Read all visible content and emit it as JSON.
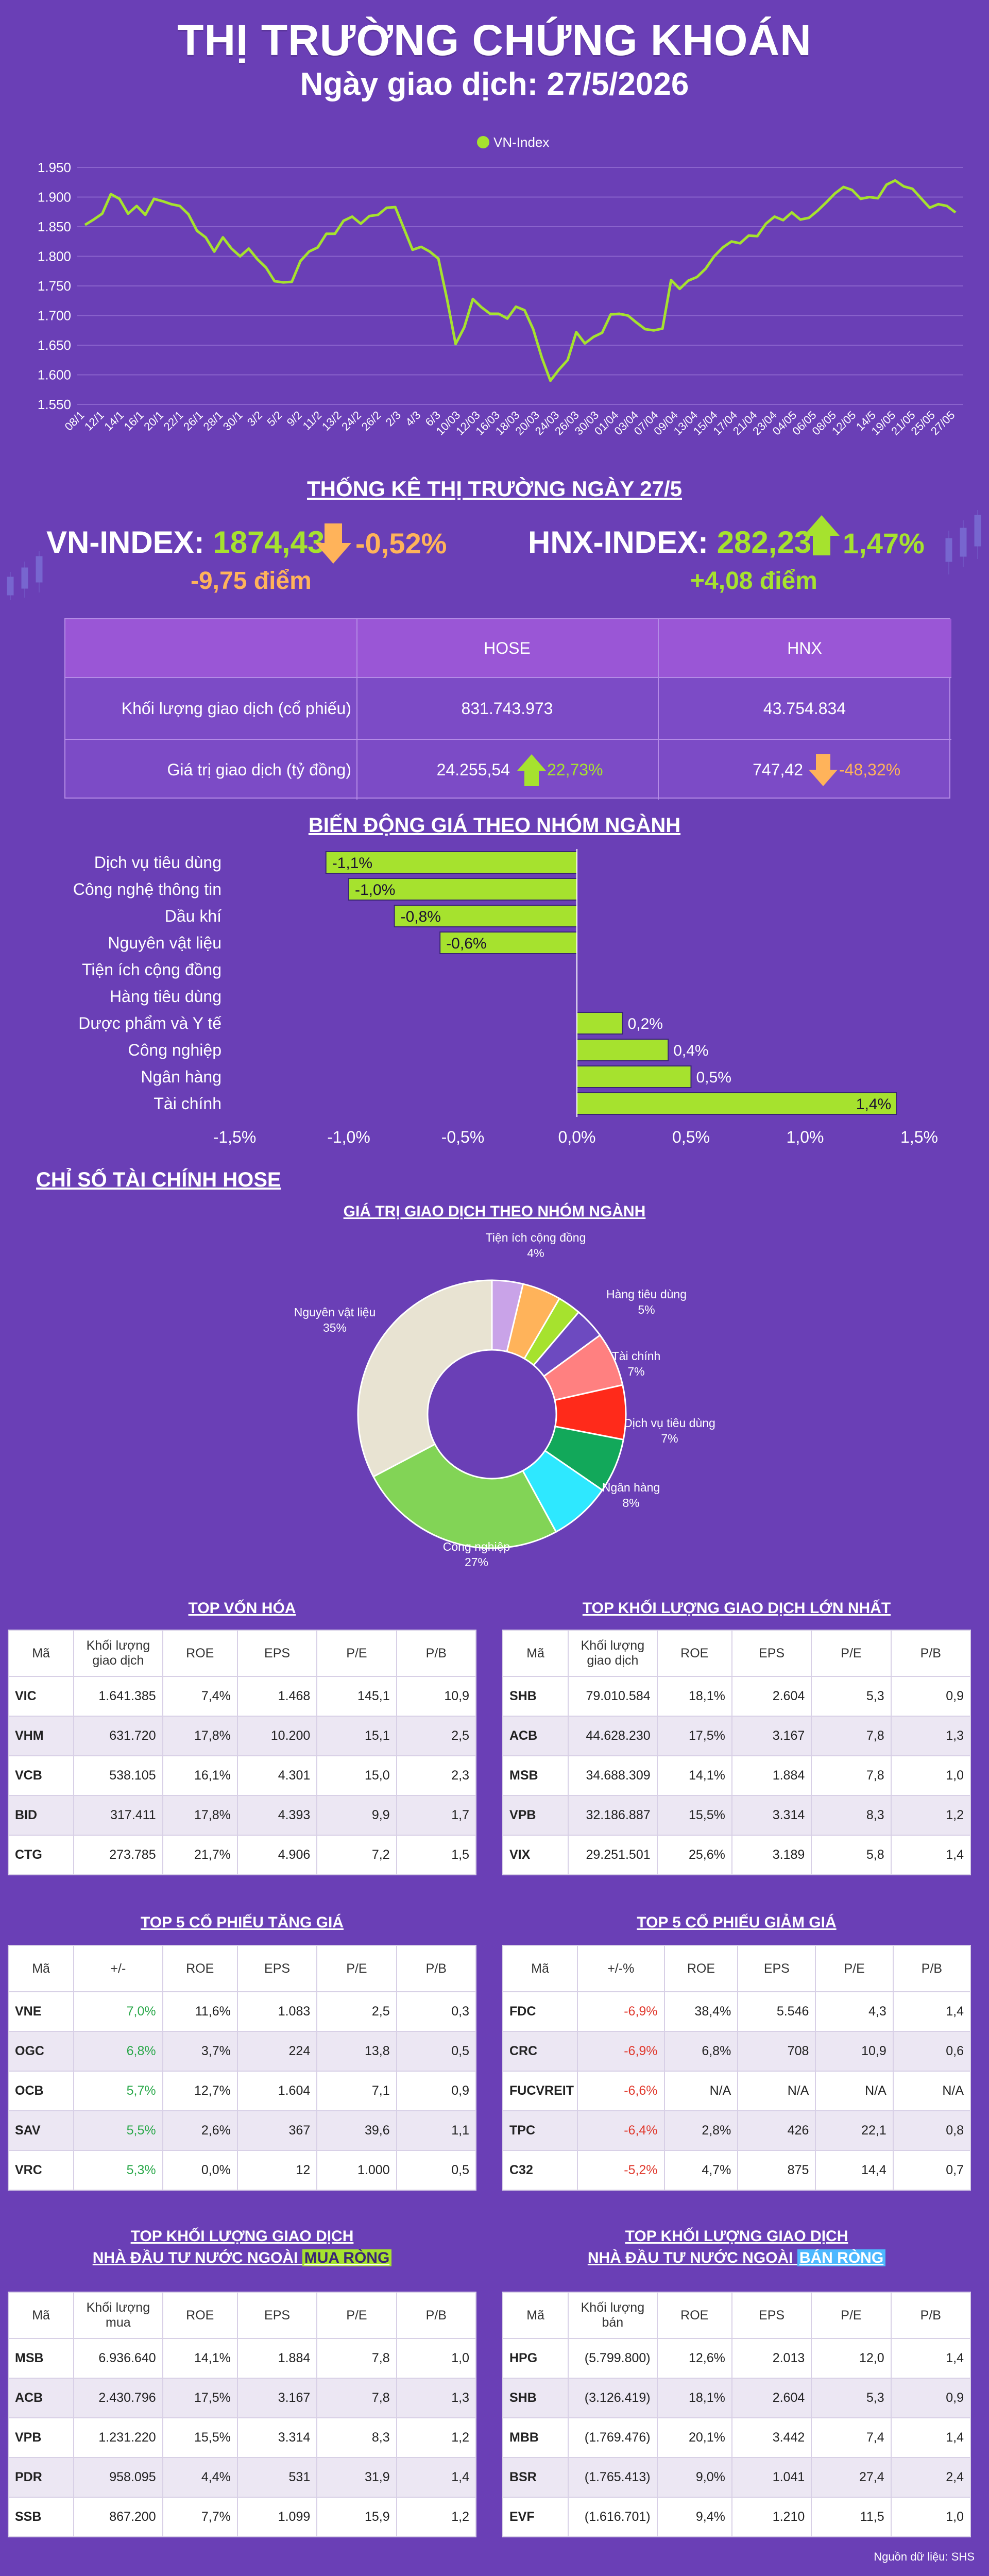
{
  "header": {
    "title": "THỊ TRƯỜNG CHỨNG KHOÁN",
    "subtitle": "Ngày giao dịch: 27/5/2026"
  },
  "colors": {
    "background": "#6a3fb6",
    "accent_green": "#a6e22e",
    "accent_orange": "#ffb35a",
    "table_header": "#9a56d6",
    "table_body": "#7c4bc6"
  },
  "chart_data": [
    {
      "type": "line",
      "legend": "VN-Index",
      "legend_position": "top",
      "ylim": [
        1550,
        1950
      ],
      "yticks": [
        "1.950",
        "1.900",
        "1.850",
        "1.800",
        "1.750",
        "1.700",
        "1.650",
        "1.600",
        "1.550"
      ],
      "ytick_values": [
        1950,
        1900,
        1850,
        1800,
        1750,
        1700,
        1650,
        1600,
        1550
      ],
      "xticks": [
        "08/1",
        "12/1",
        "14/1",
        "16/1",
        "20/1",
        "22/1",
        "26/1",
        "28/1",
        "30/1",
        "3/2",
        "5/2",
        "9/2",
        "11/2",
        "13/2",
        "24/2",
        "26/2",
        "2/3",
        "4/3",
        "6/3",
        "10/03",
        "12/03",
        "16/03",
        "18/03",
        "20/03",
        "24/03",
        "26/03",
        "30/03",
        "01/04",
        "03/04",
        "07/04",
        "09/04",
        "13/04",
        "15/04",
        "17/04",
        "21/04",
        "23/04",
        "04/05",
        "06/05",
        "08/05",
        "12/05",
        "14/5",
        "19/05",
        "21/05",
        "25/05",
        "27/05"
      ],
      "values": [
        1853,
        1862,
        1872,
        1905,
        1897,
        1872,
        1885,
        1870,
        1897,
        1893,
        1888,
        1885,
        1871,
        1843,
        1832,
        1808,
        1832,
        1813,
        1800,
        1813,
        1795,
        1781,
        1758,
        1756,
        1757,
        1792,
        1808,
        1815,
        1838,
        1838,
        1860,
        1867,
        1855,
        1868,
        1870,
        1882,
        1883,
        1847,
        1811,
        1816,
        1808,
        1796,
        1728,
        1652,
        1680,
        1728,
        1714,
        1703,
        1703,
        1695,
        1715,
        1709,
        1677,
        1629,
        1590,
        1609,
        1625,
        1672,
        1653,
        1664,
        1671,
        1702,
        1703,
        1700,
        1688,
        1677,
        1675,
        1678,
        1760,
        1745,
        1759,
        1765,
        1779,
        1800,
        1815,
        1825,
        1822,
        1835,
        1834,
        1855,
        1867,
        1861,
        1874,
        1862,
        1865,
        1877,
        1891,
        1906,
        1917,
        1912,
        1897,
        1900,
        1898,
        1921,
        1928,
        1918,
        1914,
        1898,
        1882,
        1888,
        1885,
        1874
      ]
    },
    {
      "type": "bar",
      "orientation": "horizontal",
      "categories": [
        "Dịch vụ tiêu dùng",
        "Công nghệ thông tin",
        "Dầu khí",
        "Nguyên vật liệu",
        "Tiện ích cộng đồng",
        "Hàng tiêu dùng",
        "Dược phẩm và Y tế",
        "Công nghiệp",
        "Ngân hàng",
        "Tài chính"
      ],
      "values": [
        -1.1,
        -1.0,
        -0.8,
        -0.6,
        0,
        0,
        0.2,
        0.4,
        0.5,
        1.4
      ],
      "labels": [
        "-1,1%",
        "-1,0%",
        "-0,8%",
        "-0,6%",
        "",
        "",
        "0,2%",
        "0,4%",
        "0,5%",
        "1,4%"
      ],
      "xlim": [
        -1.5,
        1.5
      ],
      "xticks": [
        "-1,5%",
        "-1,0%",
        "-0,5%",
        "0,0%",
        "0,5%",
        "1,0%",
        "1,5%"
      ],
      "xtick_values": [
        -1.5,
        -1.0,
        -0.5,
        0,
        0.5,
        1.0,
        1.5
      ]
    },
    {
      "type": "pie",
      "title": "GIÁ TRỊ GIAO DỊCH THEO NHÓM NGÀNH",
      "slices": [
        {
          "label": "Tiện ích cộng đồng",
          "value": 4,
          "text": "4%",
          "color": "#c9a3e8"
        },
        {
          "label": "Hàng tiêu dùng",
          "value": 5,
          "text": "5%",
          "color": "#ffb35a"
        },
        {
          "label": "",
          "value": 3,
          "text": "",
          "color": "#a6e22e"
        },
        {
          "label": "",
          "value": 4,
          "text": "",
          "color": "#6d4ac0"
        },
        {
          "label": "Tài chính",
          "value": 7,
          "text": "7%",
          "color": "#ff8080"
        },
        {
          "label": "",
          "value": 7,
          "text": "",
          "color": "#ff2a1a"
        },
        {
          "label": "Dịch vụ tiêu dùng",
          "value": 7,
          "text": "7%",
          "color": "#12a85a"
        },
        {
          "label": "Ngân hàng",
          "value": 8,
          "text": "8%",
          "color": "#2ee8ff"
        },
        {
          "label": "Công nghiệp",
          "value": 27,
          "text": "27%",
          "color": "#82d456"
        },
        {
          "label": "Nguyên vật liệu",
          "value": 35,
          "text": "35%",
          "color": "#e8e3d2"
        }
      ]
    }
  ],
  "stats": {
    "title": "THỐNG KÊ THỊ TRƯỜNG NGÀY 27/5",
    "vn_label": "VN-INDEX:",
    "vn_value": "1874,43",
    "vn_change": "-0,52%",
    "vn_points": "-9,75 điểm",
    "hnx_label": "HNX-INDEX:",
    "hnx_value": "282,23",
    "hnx_change": "1,47%",
    "hnx_points": "+4,08 điểm",
    "col_hose": "HOSE",
    "col_hnx": "HNX",
    "row1_label": "Khối lượng giao dịch (cổ phiếu)",
    "row1_hose": "831.743.973",
    "row1_hnx": "43.754.834",
    "row2_label": "Giá trị giao dịch (tỷ đồng)",
    "row2_hose": "24.255,54",
    "row2_hose_chg": "22,73%",
    "row2_hnx": "747,42",
    "row2_hnx_chg": "-48,32%"
  },
  "sector_title": "BIẾN ĐỘNG GIÁ THEO NHÓM NGÀNH",
  "finance_title": "CHỈ SỐ TÀI CHÍNH HOSE",
  "tables": {
    "top_cap": {
      "title": "TOP VỐN HÓA",
      "headers": [
        "Mã",
        "Khối lượng\ngiao dịch",
        "ROE",
        "EPS",
        "P/E",
        "P/B"
      ],
      "rows": [
        [
          "VIC",
          "1.641.385",
          "7,4%",
          "1.468",
          "145,1",
          "10,9"
        ],
        [
          "VHM",
          "631.720",
          "17,8%",
          "10.200",
          "15,1",
          "2,5"
        ],
        [
          "VCB",
          "538.105",
          "16,1%",
          "4.301",
          "15,0",
          "2,3"
        ],
        [
          "BID",
          "317.411",
          "17,8%",
          "4.393",
          "9,9",
          "1,7"
        ],
        [
          "CTG",
          "273.785",
          "21,7%",
          "4.906",
          "7,2",
          "1,5"
        ]
      ]
    },
    "top_volume": {
      "title": "TOP KHỐI LƯỢNG GIAO DỊCH LỚN NHẤT",
      "headers": [
        "Mã",
        "Khối lượng\ngiao dịch",
        "ROE",
        "EPS",
        "P/E",
        "P/B"
      ],
      "rows": [
        [
          "SHB",
          "79.010.584",
          "18,1%",
          "2.604",
          "5,3",
          "0,9"
        ],
        [
          "ACB",
          "44.628.230",
          "17,5%",
          "3.167",
          "7,8",
          "1,3"
        ],
        [
          "MSB",
          "34.688.309",
          "14,1%",
          "1.884",
          "7,8",
          "1,0"
        ],
        [
          "VPB",
          "32.186.887",
          "15,5%",
          "3.314",
          "8,3",
          "1,2"
        ],
        [
          "VIX",
          "29.251.501",
          "25,6%",
          "3.189",
          "5,8",
          "1,4"
        ]
      ]
    },
    "top_gainers": {
      "title": "TOP 5 CỔ PHIẾU TĂNG GIÁ",
      "headers": [
        "Mã",
        "+/-",
        "ROE",
        "EPS",
        "P/E",
        "P/B"
      ],
      "rows": [
        [
          "VNE",
          "7,0%",
          "11,6%",
          "1.083",
          "2,5",
          "0,3"
        ],
        [
          "OGC",
          "6,8%",
          "3,7%",
          "224",
          "13,8",
          "0,5"
        ],
        [
          "OCB",
          "5,7%",
          "12,7%",
          "1.604",
          "7,1",
          "0,9"
        ],
        [
          "SAV",
          "5,5%",
          "2,6%",
          "367",
          "39,6",
          "1,1"
        ],
        [
          "VRC",
          "5,3%",
          "0,0%",
          "12",
          "1.000",
          "0,5"
        ]
      ]
    },
    "top_losers": {
      "title": "TOP 5 CỔ PHIẾU GIẢM GIÁ",
      "headers": [
        "Mã",
        "+/-%",
        "ROE",
        "EPS",
        "P/E",
        "P/B"
      ],
      "rows": [
        [
          "FDC",
          "-6,9%",
          "38,4%",
          "5.546",
          "4,3",
          "1,4"
        ],
        [
          "CRC",
          "-6,9%",
          "6,8%",
          "708",
          "10,9",
          "0,6"
        ],
        [
          "FUCVREIT",
          "-6,6%",
          "N/A",
          "N/A",
          "N/A",
          "N/A"
        ],
        [
          "TPC",
          "-6,4%",
          "2,8%",
          "426",
          "22,1",
          "0,8"
        ],
        [
          "C32",
          "-5,2%",
          "4,7%",
          "875",
          "14,4",
          "0,7"
        ]
      ]
    },
    "foreign_buy": {
      "title_line1": "TOP KHỐI LƯỢNG GIAO DỊCH",
      "title_line2_prefix": "NHÀ ĐẦU TƯ NƯỚC NGOÀI ",
      "title_line2_highlight": "MUA RÒNG",
      "headers": [
        "Mã",
        "Khối lượng\nmua",
        "ROE",
        "EPS",
        "P/E",
        "P/B"
      ],
      "rows": [
        [
          "MSB",
          "6.936.640",
          "14,1%",
          "1.884",
          "7,8",
          "1,0"
        ],
        [
          "ACB",
          "2.430.796",
          "17,5%",
          "3.167",
          "7,8",
          "1,3"
        ],
        [
          "VPB",
          "1.231.220",
          "15,5%",
          "3.314",
          "8,3",
          "1,2"
        ],
        [
          "PDR",
          "958.095",
          "4,4%",
          "531",
          "31,9",
          "1,4"
        ],
        [
          "SSB",
          "867.200",
          "7,7%",
          "1.099",
          "15,9",
          "1,2"
        ]
      ]
    },
    "foreign_sell": {
      "title_line1": "TOP KHỐI LƯỢNG GIAO DỊCH",
      "title_line2_prefix": "NHÀ ĐẦU TƯ NƯỚC NGOÀI ",
      "title_line2_highlight": "BÁN RÒNG",
      "headers": [
        "Mã",
        "Khối lượng bán",
        "ROE",
        "EPS",
        "P/E",
        "P/B"
      ],
      "rows": [
        [
          "HPG",
          "(5.799.800)",
          "12,6%",
          "2.013",
          "12,0",
          "1,4"
        ],
        [
          "SHB",
          "(3.126.419)",
          "18,1%",
          "2.604",
          "5,3",
          "0,9"
        ],
        [
          "MBB",
          "(1.769.476)",
          "20,1%",
          "3.442",
          "7,4",
          "1,4"
        ],
        [
          "BSR",
          "(1.765.413)",
          "9,0%",
          "1.041",
          "27,4",
          "2,4"
        ],
        [
          "EVF",
          "(1.616.701)",
          "9,4%",
          "1.210",
          "11,5",
          "1,0"
        ]
      ]
    }
  },
  "footer": {
    "source": "Nguồn dữ liệu: SHS"
  }
}
